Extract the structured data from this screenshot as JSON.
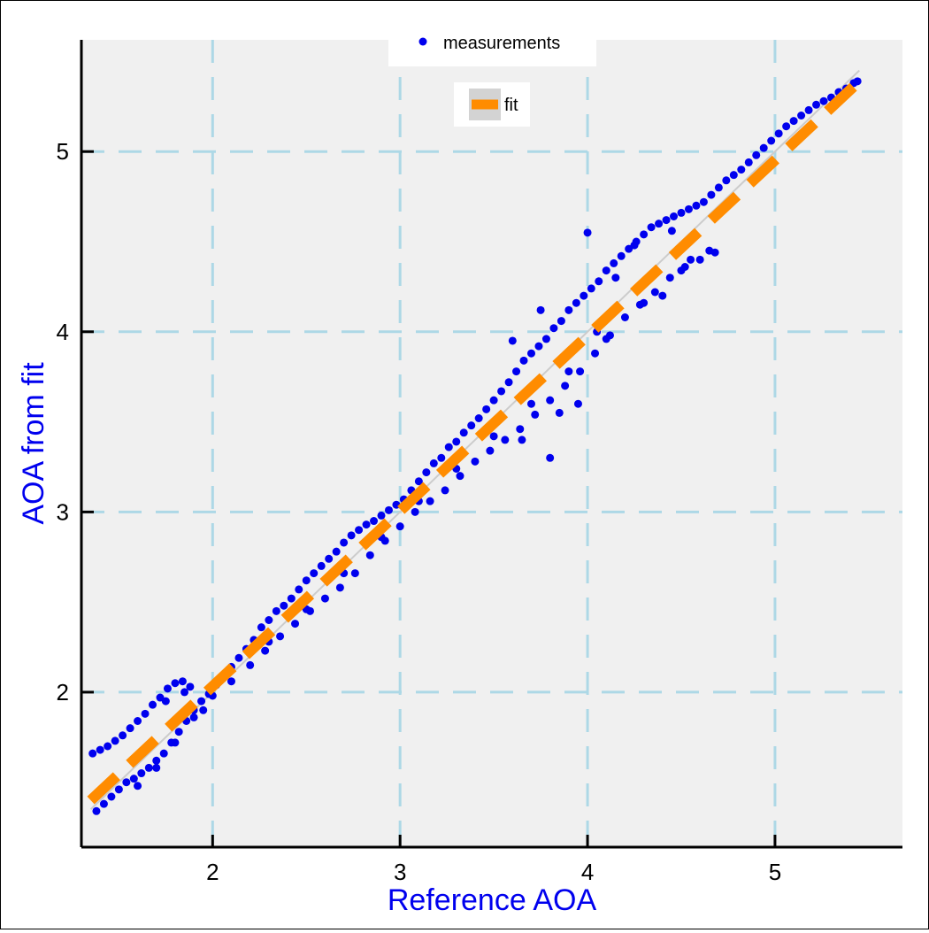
{
  "chart_data": {
    "type": "scatter",
    "xlabel": "Reference AOA",
    "ylabel": "AOA from fit",
    "xlim": [
      1.3,
      5.68
    ],
    "ylim": [
      1.14,
      5.62
    ],
    "xticks": [
      2,
      3,
      4,
      5
    ],
    "yticks": [
      2,
      3,
      4,
      5
    ],
    "grid": true,
    "legend_placement": "top-center",
    "colors": {
      "measurements": "#0000ee",
      "fit": "#ff8c00",
      "identity": "#cccccc",
      "grid": "#add8e6",
      "plot_bg": "#f0f0f0",
      "axis_label": "#0000ee"
    },
    "series": [
      {
        "name": "measurements",
        "kind": "points",
        "x": [
          1.36,
          1.4,
          1.44,
          1.48,
          1.52,
          1.56,
          1.6,
          1.64,
          1.68,
          1.72,
          1.76,
          1.8,
          1.84,
          1.88,
          1.38,
          1.42,
          1.46,
          1.5,
          1.54,
          1.58,
          1.62,
          1.66,
          1.7,
          1.74,
          1.78,
          1.82,
          1.86,
          1.9,
          1.94,
          1.98,
          2.02,
          2.06,
          2.1,
          2.14,
          2.18,
          2.22,
          2.26,
          2.3,
          2.34,
          2.38,
          2.42,
          2.46,
          2.5,
          2.54,
          2.58,
          2.62,
          2.66,
          2.7,
          2.74,
          2.78,
          2.82,
          2.86,
          2.9,
          2.94,
          2.98,
          3.02,
          3.06,
          3.1,
          3.14,
          3.18,
          3.22,
          3.26,
          3.3,
          3.34,
          3.38,
          3.42,
          3.46,
          3.5,
          3.54,
          3.58,
          3.62,
          3.66,
          3.7,
          3.74,
          3.78,
          3.82,
          3.86,
          3.9,
          3.94,
          3.98,
          4.02,
          4.06,
          4.1,
          4.14,
          4.18,
          4.22,
          4.26,
          4.3,
          4.34,
          4.38,
          4.42,
          4.46,
          4.5,
          4.54,
          4.58,
          4.62,
          4.66,
          4.7,
          4.74,
          4.78,
          4.82,
          4.86,
          4.9,
          4.94,
          4.98,
          5.02,
          5.06,
          5.1,
          5.14,
          5.18,
          5.22,
          5.26,
          5.3,
          5.34,
          5.38,
          5.42,
          5.44,
          2.2,
          2.28,
          2.36,
          2.44,
          2.52,
          2.6,
          2.68,
          2.76,
          2.84,
          2.92,
          3.0,
          3.08,
          3.16,
          3.24,
          3.32,
          3.4,
          3.48,
          3.56,
          3.64,
          3.72,
          3.8,
          3.88,
          3.96,
          4.04,
          4.12,
          4.2,
          4.28,
          4.36,
          4.44,
          4.52,
          4.6,
          4.68,
          1.6,
          1.7,
          1.8,
          1.9,
          2.0,
          2.1,
          2.3,
          2.5,
          2.7,
          2.9,
          3.1,
          3.3,
          3.5,
          3.7,
          3.9,
          4.1,
          4.3,
          4.5,
          3.6,
          3.75,
          3.85,
          4.0,
          4.15,
          4.25,
          4.35,
          4.45,
          4.55,
          4.65,
          4.75,
          3.65,
          3.8,
          3.95,
          4.05,
          4.4,
          1.75,
          1.85,
          1.95
        ],
        "y": [
          1.66,
          1.68,
          1.7,
          1.73,
          1.76,
          1.8,
          1.84,
          1.88,
          1.93,
          1.97,
          2.02,
          2.05,
          2.06,
          2.03,
          1.34,
          1.38,
          1.42,
          1.46,
          1.5,
          1.52,
          1.55,
          1.58,
          1.62,
          1.66,
          1.72,
          1.78,
          1.84,
          1.9,
          1.95,
          1.99,
          2.04,
          2.09,
          2.14,
          2.19,
          2.24,
          2.29,
          2.36,
          2.4,
          2.45,
          2.48,
          2.52,
          2.57,
          2.62,
          2.66,
          2.7,
          2.74,
          2.78,
          2.83,
          2.87,
          2.9,
          2.93,
          2.95,
          2.98,
          3.01,
          3.04,
          3.07,
          3.12,
          3.17,
          3.22,
          3.27,
          3.3,
          3.36,
          3.39,
          3.44,
          3.48,
          3.52,
          3.57,
          3.62,
          3.67,
          3.72,
          3.78,
          3.84,
          3.88,
          3.92,
          3.96,
          4.02,
          4.06,
          4.12,
          4.16,
          4.2,
          4.24,
          4.28,
          4.34,
          4.38,
          4.42,
          4.46,
          4.5,
          4.54,
          4.58,
          4.6,
          4.62,
          4.64,
          4.66,
          4.68,
          4.7,
          4.72,
          4.76,
          4.8,
          4.84,
          4.87,
          4.9,
          4.94,
          4.98,
          5.02,
          5.06,
          5.1,
          5.14,
          5.17,
          5.2,
          5.23,
          5.26,
          5.28,
          5.3,
          5.33,
          5.35,
          5.38,
          5.39,
          2.15,
          2.23,
          2.31,
          2.38,
          2.45,
          2.52,
          2.58,
          2.66,
          2.76,
          2.84,
          2.92,
          3.0,
          3.06,
          3.12,
          3.2,
          3.28,
          3.34,
          3.4,
          3.46,
          3.54,
          3.62,
          3.7,
          3.78,
          3.88,
          3.98,
          4.08,
          4.15,
          4.22,
          4.3,
          4.36,
          4.4,
          4.44,
          1.48,
          1.58,
          1.72,
          1.86,
          1.98,
          2.06,
          2.28,
          2.46,
          2.66,
          2.86,
          3.06,
          3.24,
          3.42,
          3.6,
          3.78,
          3.96,
          4.16,
          4.34,
          3.95,
          4.12,
          3.55,
          4.55,
          4.3,
          4.48,
          4.32,
          4.56,
          4.4,
          4.45,
          4.7,
          3.4,
          3.3,
          3.6,
          4.0,
          4.2,
          1.95,
          2.0,
          1.9
        ]
      },
      {
        "name": "fit",
        "kind": "dashed-line",
        "x": [
          1.35,
          5.45
        ],
        "y": [
          1.4,
          5.39
        ]
      }
    ]
  }
}
